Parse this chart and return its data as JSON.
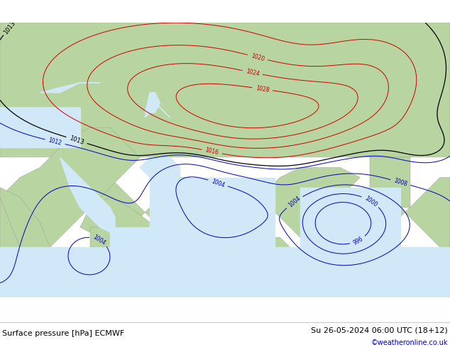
{
  "title_left": "Surface pressure [hPa] ECMWF",
  "title_right": "Su 26-05-2024 06:00 UTC (18+12)",
  "copyright": "©weatheronline.co.uk",
  "bg_color": "#d0e8f8",
  "land_color": "#b8d4a0",
  "border_color": "#999999",
  "bottom_bar_color": "#ffffff",
  "figsize": [
    6.34,
    4.9
  ],
  "dpi": 100,
  "bottom_text_color": "#000000",
  "copyright_color": "#0000cc",
  "map_extent_lon": [
    20,
    110
  ],
  "map_extent_lat": [
    0,
    55
  ],
  "isobar_levels_blue": [
    996,
    1000,
    1004,
    1008,
    1012
  ],
  "isobar_levels_red": [
    1016,
    1020,
    1024,
    1028
  ],
  "isobar_levels_black": [
    1013
  ],
  "label_fontsize": 5.5,
  "contour_linewidth": 0.7
}
